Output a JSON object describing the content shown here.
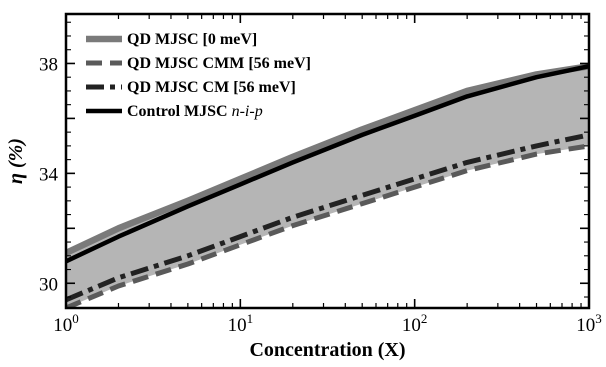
{
  "chart_data": {
    "type": "line",
    "xlabel": "Concentration (X)",
    "ylabel": "η (%)",
    "xscale": "log",
    "xlim": [
      1,
      1000
    ],
    "ylim": [
      29.1,
      39.8
    ],
    "xticks": [
      {
        "value": 1,
        "base": "10",
        "exp": "0"
      },
      {
        "value": 10,
        "base": "10",
        "exp": "1"
      },
      {
        "value": 100,
        "base": "10",
        "exp": "2"
      },
      {
        "value": 1000,
        "base": "10",
        "exp": "3"
      }
    ],
    "yticks": [
      {
        "value": 30,
        "label": "30"
      },
      {
        "value": 34,
        "label": "34"
      },
      {
        "value": 38,
        "label": "38"
      }
    ],
    "legend_position": "top-left",
    "shaded_band": {
      "between": [
        "QD MJSC [0 meV]",
        "QD MJSC CMM [56 meV]"
      ],
      "color": "#b5b5b5"
    },
    "series": [
      {
        "name": "QD MJSC [0 meV]",
        "style": "solid",
        "color": "#7a7a7a",
        "x": [
          1,
          2,
          5,
          10,
          20,
          50,
          100,
          200,
          500,
          1000
        ],
        "y": [
          31.1,
          32.0,
          33.0,
          33.8,
          34.6,
          35.6,
          36.3,
          37.0,
          37.6,
          37.9
        ]
      },
      {
        "name": "QD MJSC CMM [56 meV]",
        "style": "dashed",
        "color": "#5a5a5a",
        "x": [
          1,
          2,
          5,
          10,
          20,
          50,
          100,
          200,
          500,
          1000
        ],
        "y": [
          29.1,
          29.9,
          30.7,
          31.4,
          32.1,
          32.9,
          33.5,
          34.1,
          34.7,
          35.0
        ]
      },
      {
        "name": "QD MJSC CM [56 meV]",
        "style": "dashdot",
        "color": "#222222",
        "x": [
          1,
          2,
          5,
          10,
          20,
          50,
          100,
          200,
          500,
          1000
        ],
        "y": [
          29.4,
          30.2,
          31.0,
          31.7,
          32.4,
          33.2,
          33.8,
          34.4,
          35.0,
          35.4
        ]
      },
      {
        "name": "Control MJSC n-i-p",
        "style": "solid",
        "color": "#000000",
        "x": [
          1,
          2,
          5,
          10,
          20,
          50,
          100,
          200,
          500,
          1000
        ],
        "y": [
          30.8,
          31.7,
          32.8,
          33.6,
          34.4,
          35.4,
          36.1,
          36.8,
          37.5,
          37.9
        ]
      }
    ],
    "legend": [
      {
        "label": "QD MJSC [0 meV]",
        "italic": ""
      },
      {
        "label": "QD MJSC CMM [56 meV]",
        "italic": ""
      },
      {
        "label": "QD MJSC CM [56 meV]",
        "italic": ""
      },
      {
        "label": "Control MJSC ",
        "italic": "n-i-p"
      }
    ]
  }
}
